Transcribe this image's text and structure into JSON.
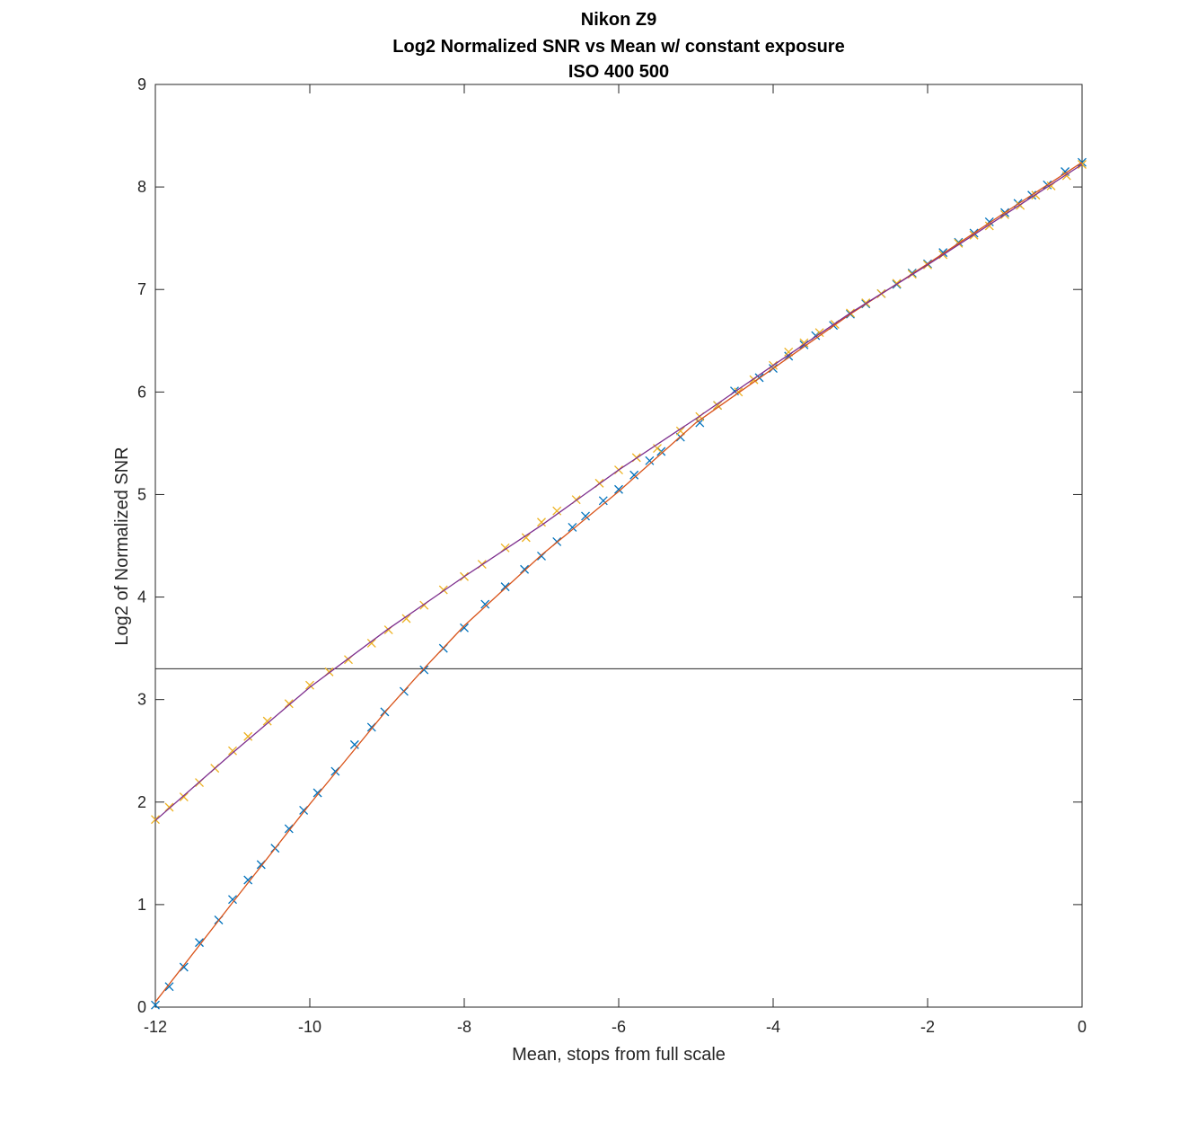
{
  "chart_data": {
    "type": "line",
    "title": [
      "Nikon Z9",
      "Log2 Normalized SNR vs Mean w/ constant exposure",
      "ISO 400  500"
    ],
    "x_label": "Mean, stops from full scale",
    "y_label": "Log2 of Normalized SNR",
    "xlim": [
      -12,
      0
    ],
    "ylim": [
      0,
      9
    ],
    "xticks": [
      -12,
      -10,
      -8,
      -6,
      -4,
      -2,
      0
    ],
    "yticks": [
      0,
      1,
      2,
      3,
      4,
      5,
      6,
      7,
      8,
      9
    ],
    "hline": 3.3,
    "hline_color": "#262626",
    "series": [
      {
        "marker": "x",
        "color": "#0072BD",
        "x": [
          -12,
          -11.82,
          -11.63,
          -11.43,
          -11.18,
          -11.0,
          -10.8,
          -10.63,
          -10.45,
          -10.27,
          -10.08,
          -9.9,
          -9.67,
          -9.42,
          -9.2,
          -9.03,
          -8.78,
          -8.52,
          -8.27,
          -8.0,
          -7.73,
          -7.47,
          -7.22,
          -7.0,
          -6.8,
          -6.6,
          -6.43,
          -6.2,
          -6.0,
          -5.8,
          -5.6,
          -5.45,
          -5.2,
          -4.95,
          -4.72,
          -4.5,
          -4.18,
          -4.0,
          -3.8,
          -3.6,
          -3.45,
          -3.22,
          -3.0,
          -2.8,
          -2.6,
          -2.4,
          -2.2,
          -2.0,
          -1.8,
          -1.6,
          -1.4,
          -1.2,
          -1.0,
          -0.83,
          -0.65,
          -0.45,
          -0.22,
          0
        ],
        "values": [
          0.02,
          0.2,
          0.39,
          0.63,
          0.85,
          1.05,
          1.24,
          1.39,
          1.55,
          1.74,
          1.92,
          2.09,
          2.3,
          2.56,
          2.73,
          2.88,
          3.08,
          3.29,
          3.5,
          3.7,
          3.93,
          4.1,
          4.27,
          4.4,
          4.54,
          4.68,
          4.79,
          4.94,
          5.05,
          5.19,
          5.33,
          5.42,
          5.56,
          5.7,
          5.87,
          6.01,
          6.14,
          6.23,
          6.35,
          6.46,
          6.55,
          6.65,
          6.76,
          6.86,
          6.96,
          7.05,
          7.16,
          7.25,
          7.36,
          7.46,
          7.55,
          7.66,
          7.75,
          7.84,
          7.92,
          8.02,
          8.15,
          8.24
        ]
      },
      {
        "marker": "x",
        "color": "#EDB120",
        "x": [
          -12,
          -11.82,
          -11.63,
          -11.43,
          -11.23,
          -11.0,
          -10.8,
          -10.55,
          -10.27,
          -10.0,
          -9.75,
          -9.5,
          -9.2,
          -8.98,
          -8.75,
          -8.52,
          -8.27,
          -8.0,
          -7.77,
          -7.47,
          -7.2,
          -7.0,
          -6.8,
          -6.55,
          -6.25,
          -6.0,
          -5.77,
          -5.5,
          -5.2,
          -4.95,
          -4.72,
          -4.45,
          -4.25,
          -4.0,
          -3.8,
          -3.6,
          -3.4,
          -3.2,
          -3.0,
          -2.8,
          -2.6,
          -2.4,
          -2.2,
          -2.0,
          -1.8,
          -1.6,
          -1.4,
          -1.2,
          -1.0,
          -0.8,
          -0.6,
          -0.4,
          -0.2,
          0
        ],
        "values": [
          1.83,
          1.95,
          2.05,
          2.19,
          2.33,
          2.5,
          2.64,
          2.79,
          2.96,
          3.14,
          3.27,
          3.39,
          3.55,
          3.68,
          3.79,
          3.92,
          4.07,
          4.2,
          4.32,
          4.48,
          4.58,
          4.73,
          4.84,
          4.95,
          5.11,
          5.24,
          5.36,
          5.45,
          5.62,
          5.76,
          5.87,
          6.0,
          6.12,
          6.26,
          6.39,
          6.48,
          6.58,
          6.66,
          6.77,
          6.87,
          6.96,
          7.06,
          7.15,
          7.24,
          7.34,
          7.45,
          7.53,
          7.62,
          7.73,
          7.82,
          7.92,
          8.01,
          8.11,
          8.22
        ]
      },
      {
        "marker": "line",
        "color": "#D95319",
        "x": [
          -12,
          -11,
          -10,
          -9,
          -8.5,
          -8,
          -7,
          -6,
          -5,
          -4,
          -3,
          -2,
          -1,
          0
        ],
        "values": [
          0.05,
          1.02,
          1.98,
          2.9,
          3.32,
          3.72,
          4.41,
          5.03,
          5.7,
          6.23,
          6.76,
          7.25,
          7.75,
          8.24
        ]
      },
      {
        "marker": "line",
        "color": "#7E2F8E",
        "x": [
          -12,
          -11,
          -10,
          -9,
          -8,
          -7,
          -6,
          -5,
          -4,
          -3,
          -2,
          -1,
          0
        ],
        "values": [
          1.82,
          2.48,
          3.12,
          3.68,
          4.2,
          4.7,
          5.24,
          5.74,
          6.26,
          6.77,
          7.24,
          7.73,
          8.22
        ]
      }
    ]
  }
}
